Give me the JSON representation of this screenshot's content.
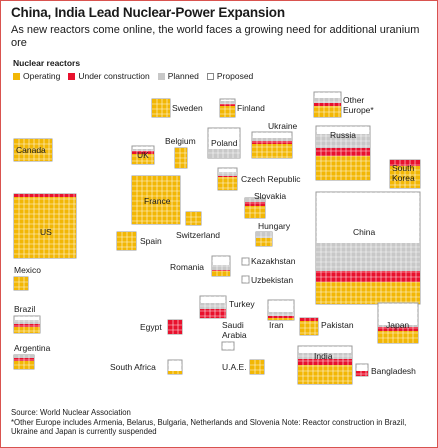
{
  "title": "China, India Lead Nuclear-Power Expansion",
  "subtitle": "As new reactors come online, the world faces a growing need for additional uranium ore",
  "legend": {
    "title": "Nuclear reactors",
    "items": [
      {
        "key": "operating",
        "label": "Operating",
        "color": "#f2b705"
      },
      {
        "key": "construction",
        "label": "Under construction",
        "color": "#e8112d"
      },
      {
        "key": "planned",
        "label": "Planned",
        "color": "#c8c8c8"
      },
      {
        "key": "proposed",
        "label": "Proposed",
        "color": "#ffffff"
      }
    ]
  },
  "countries": {
    "sweden": "Sweden",
    "finland": "Finland",
    "other_europe": "Other\nEurope*",
    "canada": "Canada",
    "uk": "UK",
    "belgium": "Belgium",
    "poland": "Poland",
    "ukraine": "Ukraine",
    "russia": "Russia",
    "south_korea": "South\nKorea",
    "czech": "Czech Republic",
    "france": "France",
    "slovakia": "Slovakia",
    "us": "US",
    "hungary": "Hungary",
    "switzerland": "Switzerland",
    "spain": "Spain",
    "china": "China",
    "romania": "Romania",
    "kazakhstan": "Kazakhstan",
    "uzbekistan": "Uzbekistan",
    "mexico": "Mexico",
    "brazil": "Brazil",
    "turkey": "Turkey",
    "egypt": "Egypt",
    "saudi_arabia": "Saudi\nArabia",
    "iran": "Iran",
    "pakistan": "Pakistan",
    "japan": "Japan",
    "argentina": "Argentina",
    "india": "India",
    "south_africa": "South Africa",
    "uae": "U.A.E.",
    "bangladesh": "Bangladesh"
  },
  "source": "Source: World Nuclear Association",
  "note": "*Other Europe includes Armenia, Belarus, Bulgaria, Netherlands and Slovenia Note: Reactor construction in Brazil, Ukraine and Japan is currently suspended"
}
